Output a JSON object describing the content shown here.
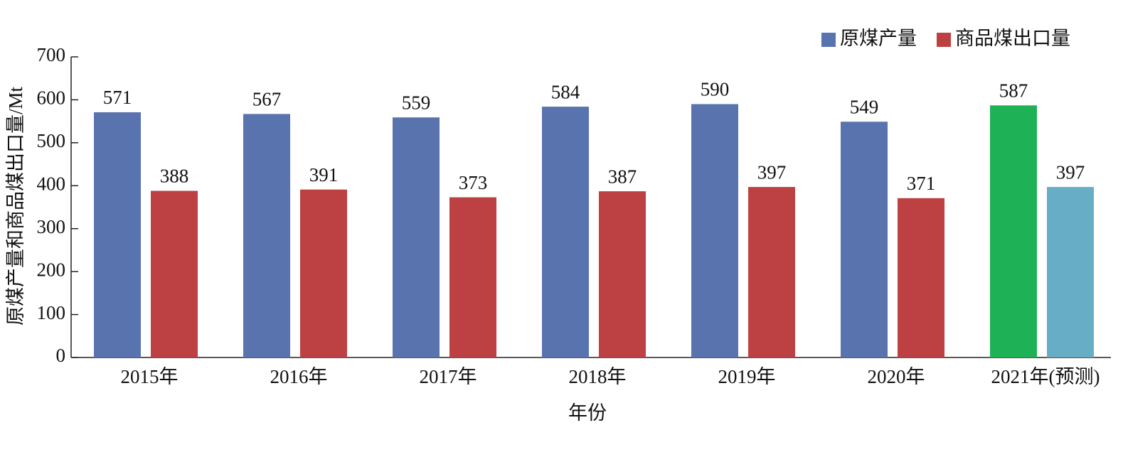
{
  "chart_data": {
    "type": "bar",
    "x_label": "年份",
    "y_label": "原煤产量和商品煤出口量/Mt",
    "categories": [
      "2015年",
      "2016年",
      "2017年",
      "2018年",
      "2019年",
      "2020年",
      "2021年(预测)"
    ],
    "series": [
      {
        "name": "原煤产量",
        "color": "#5873ae",
        "values": [
          571,
          567,
          559,
          584,
          590,
          549,
          587
        ],
        "colors": [
          "#5873ae",
          "#5873ae",
          "#5873ae",
          "#5873ae",
          "#5873ae",
          "#5873ae",
          "#1fb155"
        ]
      },
      {
        "name": "商品煤出口量",
        "color": "#bd4043",
        "values": [
          388,
          391,
          373,
          387,
          397,
          371,
          397
        ],
        "colors": [
          "#bd4043",
          "#bd4043",
          "#bd4043",
          "#bd4043",
          "#bd4043",
          "#bd4043",
          "#67adc6"
        ]
      }
    ],
    "ylim": [
      0,
      700
    ],
    "yticks": [
      0,
      100,
      200,
      300,
      400,
      500,
      600,
      700
    ],
    "grid": false,
    "legend": "top-right"
  }
}
